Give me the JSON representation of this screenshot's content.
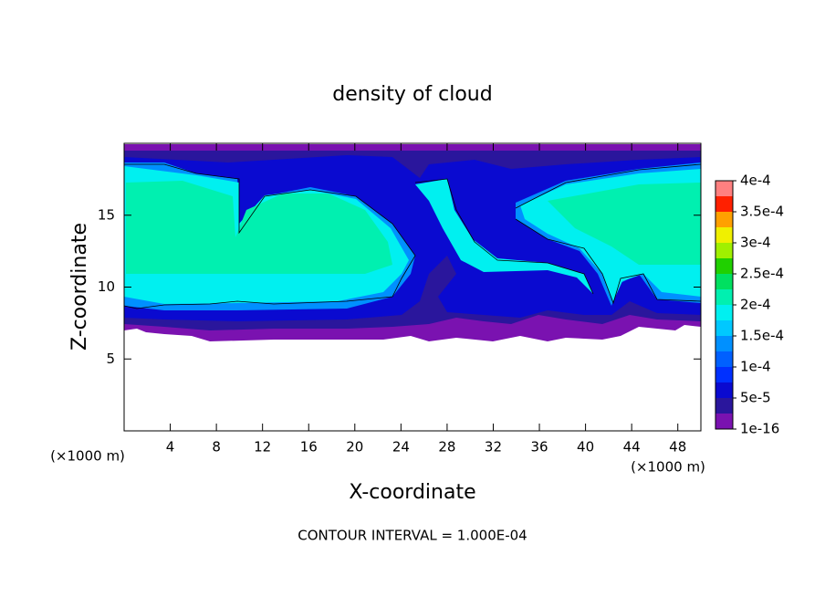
{
  "chart_data": {
    "type": "contour",
    "title": "density of cloud",
    "xlabel": "X-coordinate",
    "ylabel": "Z-coordinate",
    "yunit": "(×1000 m)",
    "xunit": "(×1000 m)",
    "footer": "CONTOUR INTERVAL = 1.000E-04",
    "xlim": [
      0,
      50
    ],
    "xticks": [
      4,
      8,
      12,
      16,
      20,
      24,
      28,
      32,
      36,
      40,
      44,
      48
    ],
    "ylim": [
      0,
      20
    ],
    "yticks": [
      5,
      10,
      15
    ],
    "colorbar": {
      "lim": [
        1e-16,
        0.0004
      ],
      "ticks": [
        {
          "value": 1e-16,
          "label": "1e-16"
        },
        {
          "value": 5e-05,
          "label": "5e-5"
        },
        {
          "value": 0.0001,
          "label": "1e-4"
        },
        {
          "value": 0.00015,
          "label": "1.5e-4"
        },
        {
          "value": 0.0002,
          "label": "2e-4"
        },
        {
          "value": 0.00025,
          "label": "2.5e-4"
        },
        {
          "value": 0.0003,
          "label": "3e-4"
        },
        {
          "value": 0.00035,
          "label": "3.5e-4"
        },
        {
          "value": 0.0004,
          "label": "4e-4"
        }
      ],
      "colors": [
        "#7a12b0",
        "#2a169c",
        "#0a0ad0",
        "#0030ff",
        "#0060ff",
        "#0090ff",
        "#00c8ff",
        "#00f0f0",
        "#00f0b0",
        "#00e060",
        "#20d000",
        "#a0f000",
        "#f0f000",
        "#ffa000",
        "#ff2000",
        "#ff8080"
      ]
    }
  }
}
